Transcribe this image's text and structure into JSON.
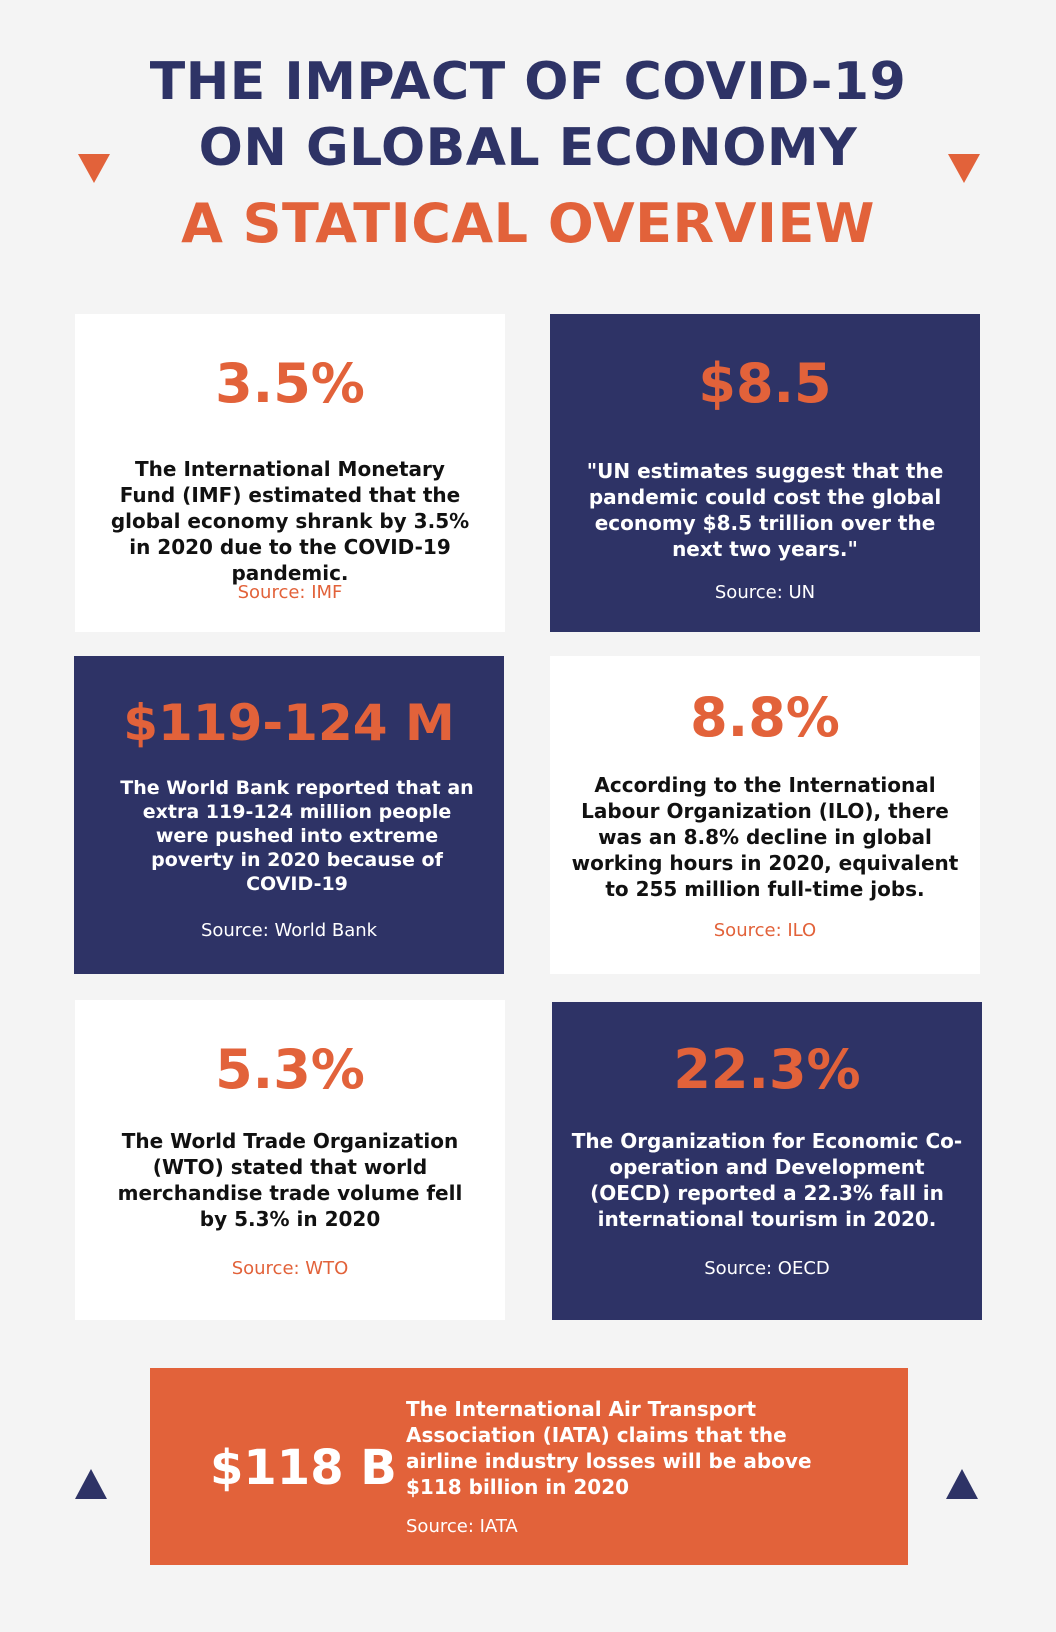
{
  "header": {
    "title_line1": "THE IMPACT OF COVID-19",
    "title_line2": "ON GLOBAL ECONOMY",
    "subtitle": "A STATICAL OVERVIEW"
  },
  "colors": {
    "navy": "#2e3366",
    "orange": "#e2623a",
    "white": "#ffffff",
    "background": "#f4f4f4"
  },
  "cards": [
    {
      "stat": "3.5%",
      "description": "The International Monetary Fund (IMF) estimated that the global economy shrank by 3.5% in 2020 due to the COVID-19 pandemic.",
      "source": "Source: IMF",
      "theme": "light"
    },
    {
      "stat": "$8.5",
      "description": "\"UN estimates suggest that the pandemic could cost the global economy $8.5 trillion over the next two years.\"",
      "source": "Source: UN",
      "theme": "dark"
    },
    {
      "stat": "$119-124 M",
      "description": "The World Bank reported that an extra 119-124 million people were pushed into extreme poverty in 2020 because of COVID-19",
      "source": "Source: World Bank",
      "theme": "dark"
    },
    {
      "stat": "8.8%",
      "description": "According to the International Labour Organization (ILO), there was an 8.8% decline in global working hours in 2020, equivalent to 255 million full-time jobs.",
      "source": "Source: ILO",
      "theme": "light"
    },
    {
      "stat": "5.3%",
      "description": "The World Trade Organization (WTO) stated that world merchandise trade volume fell by 5.3% in 2020",
      "source": "Source: WTO",
      "theme": "light"
    },
    {
      "stat": "22.3%",
      "description": "The Organization for Economic Co-operation and Development (OECD) reported a 22.3% fall in international tourism in 2020.",
      "source": "Source: OECD",
      "theme": "dark"
    }
  ],
  "banner": {
    "stat": "$118 B",
    "description": "The International Air Transport Association (IATA) claims that the airline industry losses will be above $118 billion in 2020",
    "source": "Source: IATA"
  }
}
